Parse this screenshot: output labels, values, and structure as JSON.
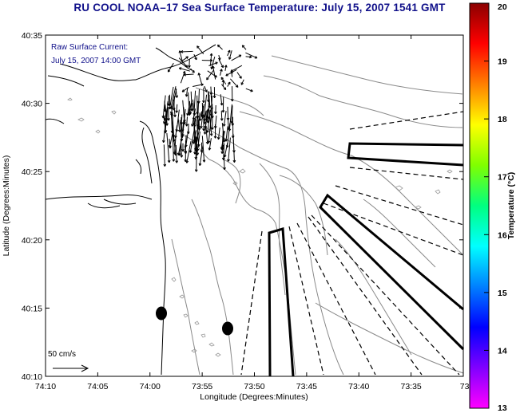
{
  "title": "RU COOL  NOAA–17  Sea Surface Temperature:  July 15, 2007 1541 GMT",
  "legend": {
    "line1": "Raw Surface Current:",
    "line2": "July 15, 2007 14:00 GMT"
  },
  "scale": {
    "label": "50 cm/s"
  },
  "axes": {
    "xlabel": "Longitude (Degrees:Minutes)",
    "ylabel": "Latitude (Degrees:Minutes)",
    "xticks": [
      "74:10",
      "74:05",
      "74:00",
      "73:55",
      "73:50",
      "73:45",
      "73:40",
      "73:35",
      "73:3"
    ],
    "yticks": [
      "40:35",
      "40:30",
      "40:25",
      "40:20",
      "40:15",
      "40:10"
    ]
  },
  "colorbar": {
    "label": "Temperature (°C)",
    "ticks": [
      "20",
      "19",
      "18",
      "17",
      "16",
      "15",
      "14",
      "13"
    ],
    "colors": [
      "#8b0000",
      "#ff0000",
      "#ff8000",
      "#ffff00",
      "#80ff00",
      "#00ff80",
      "#00ffff",
      "#0080ff",
      "#0000ff",
      "#8000ff",
      "#ff00ff"
    ]
  }
}
